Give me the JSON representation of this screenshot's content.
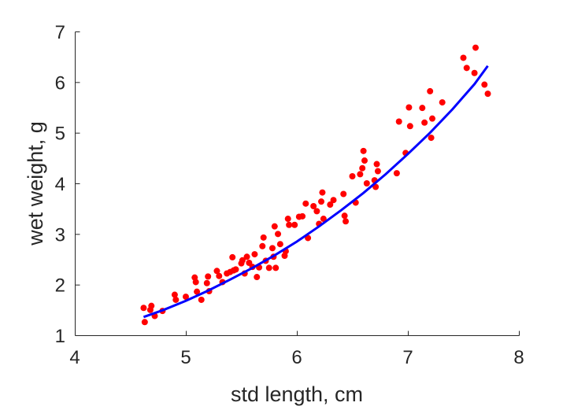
{
  "chart_data": {
    "type": "scatter",
    "title": "",
    "xlabel": "std length, cm",
    "ylabel": "wet weight, g",
    "xlim": [
      4,
      8
    ],
    "ylim": [
      1,
      7
    ],
    "xticks": [
      4,
      5,
      6,
      7,
      8
    ],
    "yticks": [
      1,
      2,
      3,
      4,
      5,
      6,
      7
    ],
    "grid": false,
    "legend": "none",
    "colors": {
      "points": "#ff0000",
      "fit": "#0000ff",
      "axis": "#262626"
    },
    "series": [
      {
        "kind": "points",
        "x": [
          4.62,
          4.63,
          4.68,
          4.69,
          4.72,
          4.79,
          4.9,
          4.91,
          5.0,
          5.08,
          5.09,
          5.1,
          5.14,
          5.19,
          5.2,
          5.21,
          5.28,
          5.3,
          5.33,
          5.37,
          5.4,
          5.42,
          5.43,
          5.45,
          5.5,
          5.51,
          5.53,
          5.55,
          5.57,
          5.6,
          5.62,
          5.64,
          5.66,
          5.69,
          5.7,
          5.72,
          5.75,
          5.78,
          5.79,
          5.8,
          5.81,
          5.83,
          5.85,
          5.89,
          5.9,
          5.92,
          5.93,
          5.98,
          6.02,
          6.05,
          6.08,
          6.1,
          6.15,
          6.18,
          6.2,
          6.22,
          6.23,
          6.24,
          6.3,
          6.33,
          6.42,
          6.43,
          6.44,
          6.5,
          6.53,
          6.57,
          6.59,
          6.6,
          6.61,
          6.63,
          6.7,
          6.71,
          6.72,
          6.73,
          6.9,
          6.92,
          6.98,
          7.01,
          7.02,
          7.13,
          7.15,
          7.2,
          7.21,
          7.22,
          7.31,
          7.5,
          7.53,
          7.6,
          7.61,
          7.69,
          7.72
        ],
        "y": [
          1.54,
          1.26,
          1.5,
          1.58,
          1.38,
          1.48,
          1.8,
          1.7,
          1.76,
          2.14,
          2.05,
          1.86,
          1.7,
          2.03,
          2.16,
          1.87,
          2.27,
          2.17,
          2.05,
          2.22,
          2.25,
          2.54,
          2.28,
          2.3,
          2.42,
          2.48,
          2.22,
          2.55,
          2.43,
          2.35,
          2.6,
          2.15,
          2.34,
          2.76,
          2.93,
          2.47,
          2.33,
          2.72,
          2.55,
          3.15,
          2.33,
          3.0,
          2.8,
          2.57,
          2.66,
          3.3,
          3.18,
          3.18,
          3.34,
          3.35,
          3.6,
          2.92,
          3.55,
          3.45,
          3.2,
          3.64,
          3.82,
          3.3,
          3.58,
          3.67,
          3.79,
          3.36,
          3.25,
          4.14,
          3.62,
          4.18,
          4.3,
          4.64,
          4.45,
          4.0,
          4.06,
          3.93,
          4.38,
          4.24,
          4.2,
          5.22,
          4.6,
          5.5,
          5.13,
          5.49,
          5.2,
          5.82,
          4.9,
          5.28,
          5.6,
          6.48,
          6.28,
          6.18,
          6.68,
          5.95,
          5.77
        ]
      },
      {
        "kind": "fit",
        "x": [
          4.62,
          4.8,
          5.0,
          5.2,
          5.4,
          5.6,
          5.8,
          6.0,
          6.2,
          6.4,
          6.6,
          6.8,
          7.0,
          7.2,
          7.4,
          7.6,
          7.72
        ],
        "y": [
          1.36,
          1.5,
          1.68,
          1.88,
          2.1,
          2.33,
          2.58,
          2.85,
          3.15,
          3.47,
          3.81,
          4.18,
          4.58,
          5.0,
          5.46,
          5.96,
          6.32
        ]
      }
    ]
  }
}
